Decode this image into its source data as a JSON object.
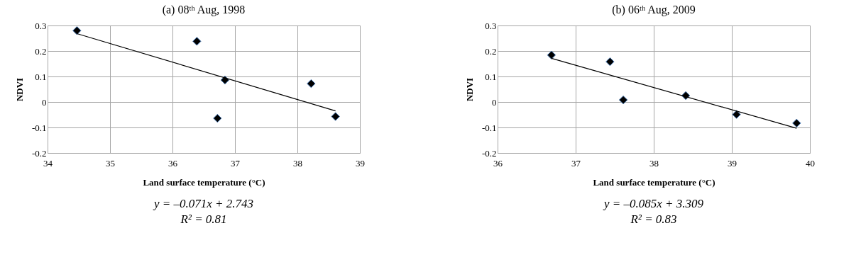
{
  "chart_data": [
    {
      "type": "scatter",
      "title": "(a) 08ᵗʰ Aug, 1998",
      "xlabel": "Land surface temperature (°C)",
      "ylabel": "NDVI",
      "xlim": [
        34,
        39
      ],
      "xticks": [
        34,
        35,
        36,
        37,
        38,
        39
      ],
      "ylim": [
        -0.2,
        0.3
      ],
      "yticks": [
        -0.2,
        -0.1,
        0,
        0.1,
        0.2,
        0.3
      ],
      "grid": true,
      "series": [
        {
          "type": "scatter",
          "marker": "diamond",
          "color": "#000000",
          "x": [
            34.47,
            36.39,
            36.84,
            36.72,
            38.22,
            38.61
          ],
          "values": [
            0.28,
            0.238,
            0.086,
            -0.064,
            0.072,
            -0.057
          ]
        },
        {
          "type": "line",
          "marker": "none",
          "color": "#000000",
          "x": [
            34.47,
            38.61
          ],
          "values": [
            0.268,
            -0.035
          ]
        }
      ],
      "annotations": [
        "y = –0.071x + 2.743",
        "R² = 0.81"
      ]
    },
    {
      "type": "scatter",
      "title": "(b) 06ᵗʰ Aug, 2009",
      "xlabel": "Land surface temperature (°C)",
      "ylabel": "NDVI",
      "xlim": [
        36,
        40
      ],
      "xticks": [
        36,
        37,
        38,
        39,
        40
      ],
      "ylim": [
        -0.2,
        0.3
      ],
      "yticks": [
        -0.2,
        -0.1,
        0,
        0.1,
        0.2,
        0.3
      ],
      "grid": true,
      "series": [
        {
          "type": "scatter",
          "marker": "diamond",
          "color": "#000000",
          "x": [
            36.69,
            37.44,
            37.61,
            38.41,
            39.06,
            39.83
          ],
          "values": [
            0.184,
            0.158,
            0.008,
            0.025,
            -0.049,
            -0.083
          ]
        },
        {
          "type": "line",
          "marker": "none",
          "color": "#000000",
          "x": [
            36.69,
            39.83
          ],
          "values": [
            0.171,
            -0.103
          ]
        }
      ],
      "annotations": [
        "y = –0.085x + 3.309",
        "R² = 0.83"
      ]
    }
  ]
}
